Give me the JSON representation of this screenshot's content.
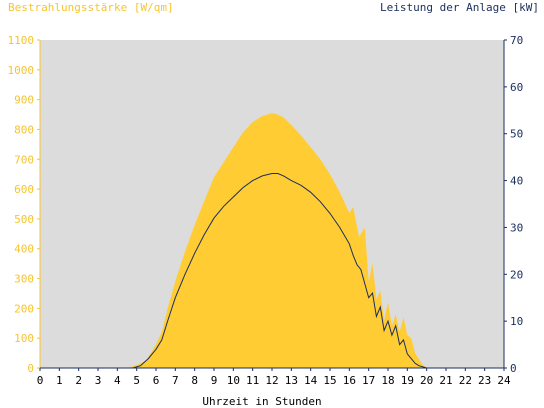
{
  "chart_data": {
    "type": "area",
    "left_axis_label": "Bestrahlungsstärke [W/qm]",
    "right_axis_label": "Leistung der Anlage [kW]",
    "xlabel": "Uhrzeit in Stunden",
    "xlim": [
      0,
      24
    ],
    "ylim_left": [
      0,
      1100
    ],
    "ylim_right": [
      0,
      70
    ],
    "x_ticks": [
      "0",
      "1",
      "2",
      "3",
      "4",
      "5",
      "6",
      "7",
      "8",
      "9",
      "10",
      "11",
      "12",
      "13",
      "14",
      "15",
      "16",
      "17",
      "18",
      "19",
      "20",
      "21",
      "22",
      "23",
      "24"
    ],
    "y_left_ticks": [
      "0",
      "100",
      "200",
      "300",
      "400",
      "500",
      "600",
      "700",
      "800",
      "900",
      "1000",
      "1100"
    ],
    "y_right_ticks": [
      "0",
      "10",
      "20",
      "30",
      "40",
      "50",
      "60",
      "70"
    ],
    "grid": false,
    "colors": {
      "irradiance": "#ffcc33",
      "power": "#1a2e5e",
      "plot_background": "#dcdcdc",
      "left_axis": "#f6c52d",
      "right_axis": "#1a2e5e"
    },
    "series": [
      {
        "axis": "left",
        "style": "area",
        "x": [
          0,
          4.5,
          5,
          5.5,
          6,
          6.3,
          6.6,
          7,
          7.5,
          8,
          8.5,
          9,
          9.5,
          10,
          10.5,
          11,
          11.5,
          12,
          12.3,
          12.6,
          13,
          13.5,
          14,
          14.5,
          15,
          15.5,
          16,
          16.2,
          16.5,
          16.8,
          17,
          17.2,
          17.4,
          17.6,
          17.8,
          18,
          18.2,
          18.4,
          18.6,
          18.8,
          19,
          19.2,
          19.4,
          19.6,
          19.8,
          20,
          20.5,
          24
        ],
        "values": [
          0,
          0,
          10,
          25,
          80,
          120,
          200,
          290,
          390,
          480,
          560,
          640,
          690,
          740,
          790,
          825,
          845,
          855,
          850,
          840,
          815,
          780,
          740,
          700,
          650,
          590,
          520,
          540,
          440,
          470,
          290,
          350,
          230,
          260,
          160,
          220,
          140,
          180,
          120,
          170,
          110,
          100,
          50,
          30,
          10,
          2,
          0,
          0
        ]
      },
      {
        "axis": "right",
        "style": "line",
        "x": [
          0,
          4.8,
          5.2,
          5.6,
          6,
          6.3,
          6.6,
          7,
          7.5,
          8,
          8.5,
          9,
          9.5,
          10,
          10.5,
          11,
          11.5,
          12,
          12.3,
          12.6,
          13,
          13.5,
          14,
          14.5,
          15,
          15.5,
          16,
          16.2,
          16.4,
          16.6,
          16.8,
          17,
          17.2,
          17.4,
          17.6,
          17.8,
          18,
          18.2,
          18.4,
          18.6,
          18.8,
          19,
          19.2,
          19.4,
          19.6,
          20,
          24
        ],
        "values": [
          0,
          0,
          0.5,
          2,
          4,
          6,
          10,
          15,
          20,
          24.5,
          28.5,
          32,
          34.5,
          36.5,
          38.5,
          40,
          41,
          41.5,
          41.5,
          41,
          40,
          39,
          37.5,
          35.5,
          33,
          30,
          26.5,
          24,
          22,
          21,
          18,
          15,
          16,
          11,
          13,
          8,
          10,
          7,
          9,
          5,
          6,
          3,
          2,
          1,
          0.5,
          0,
          0
        ]
      }
    ]
  }
}
